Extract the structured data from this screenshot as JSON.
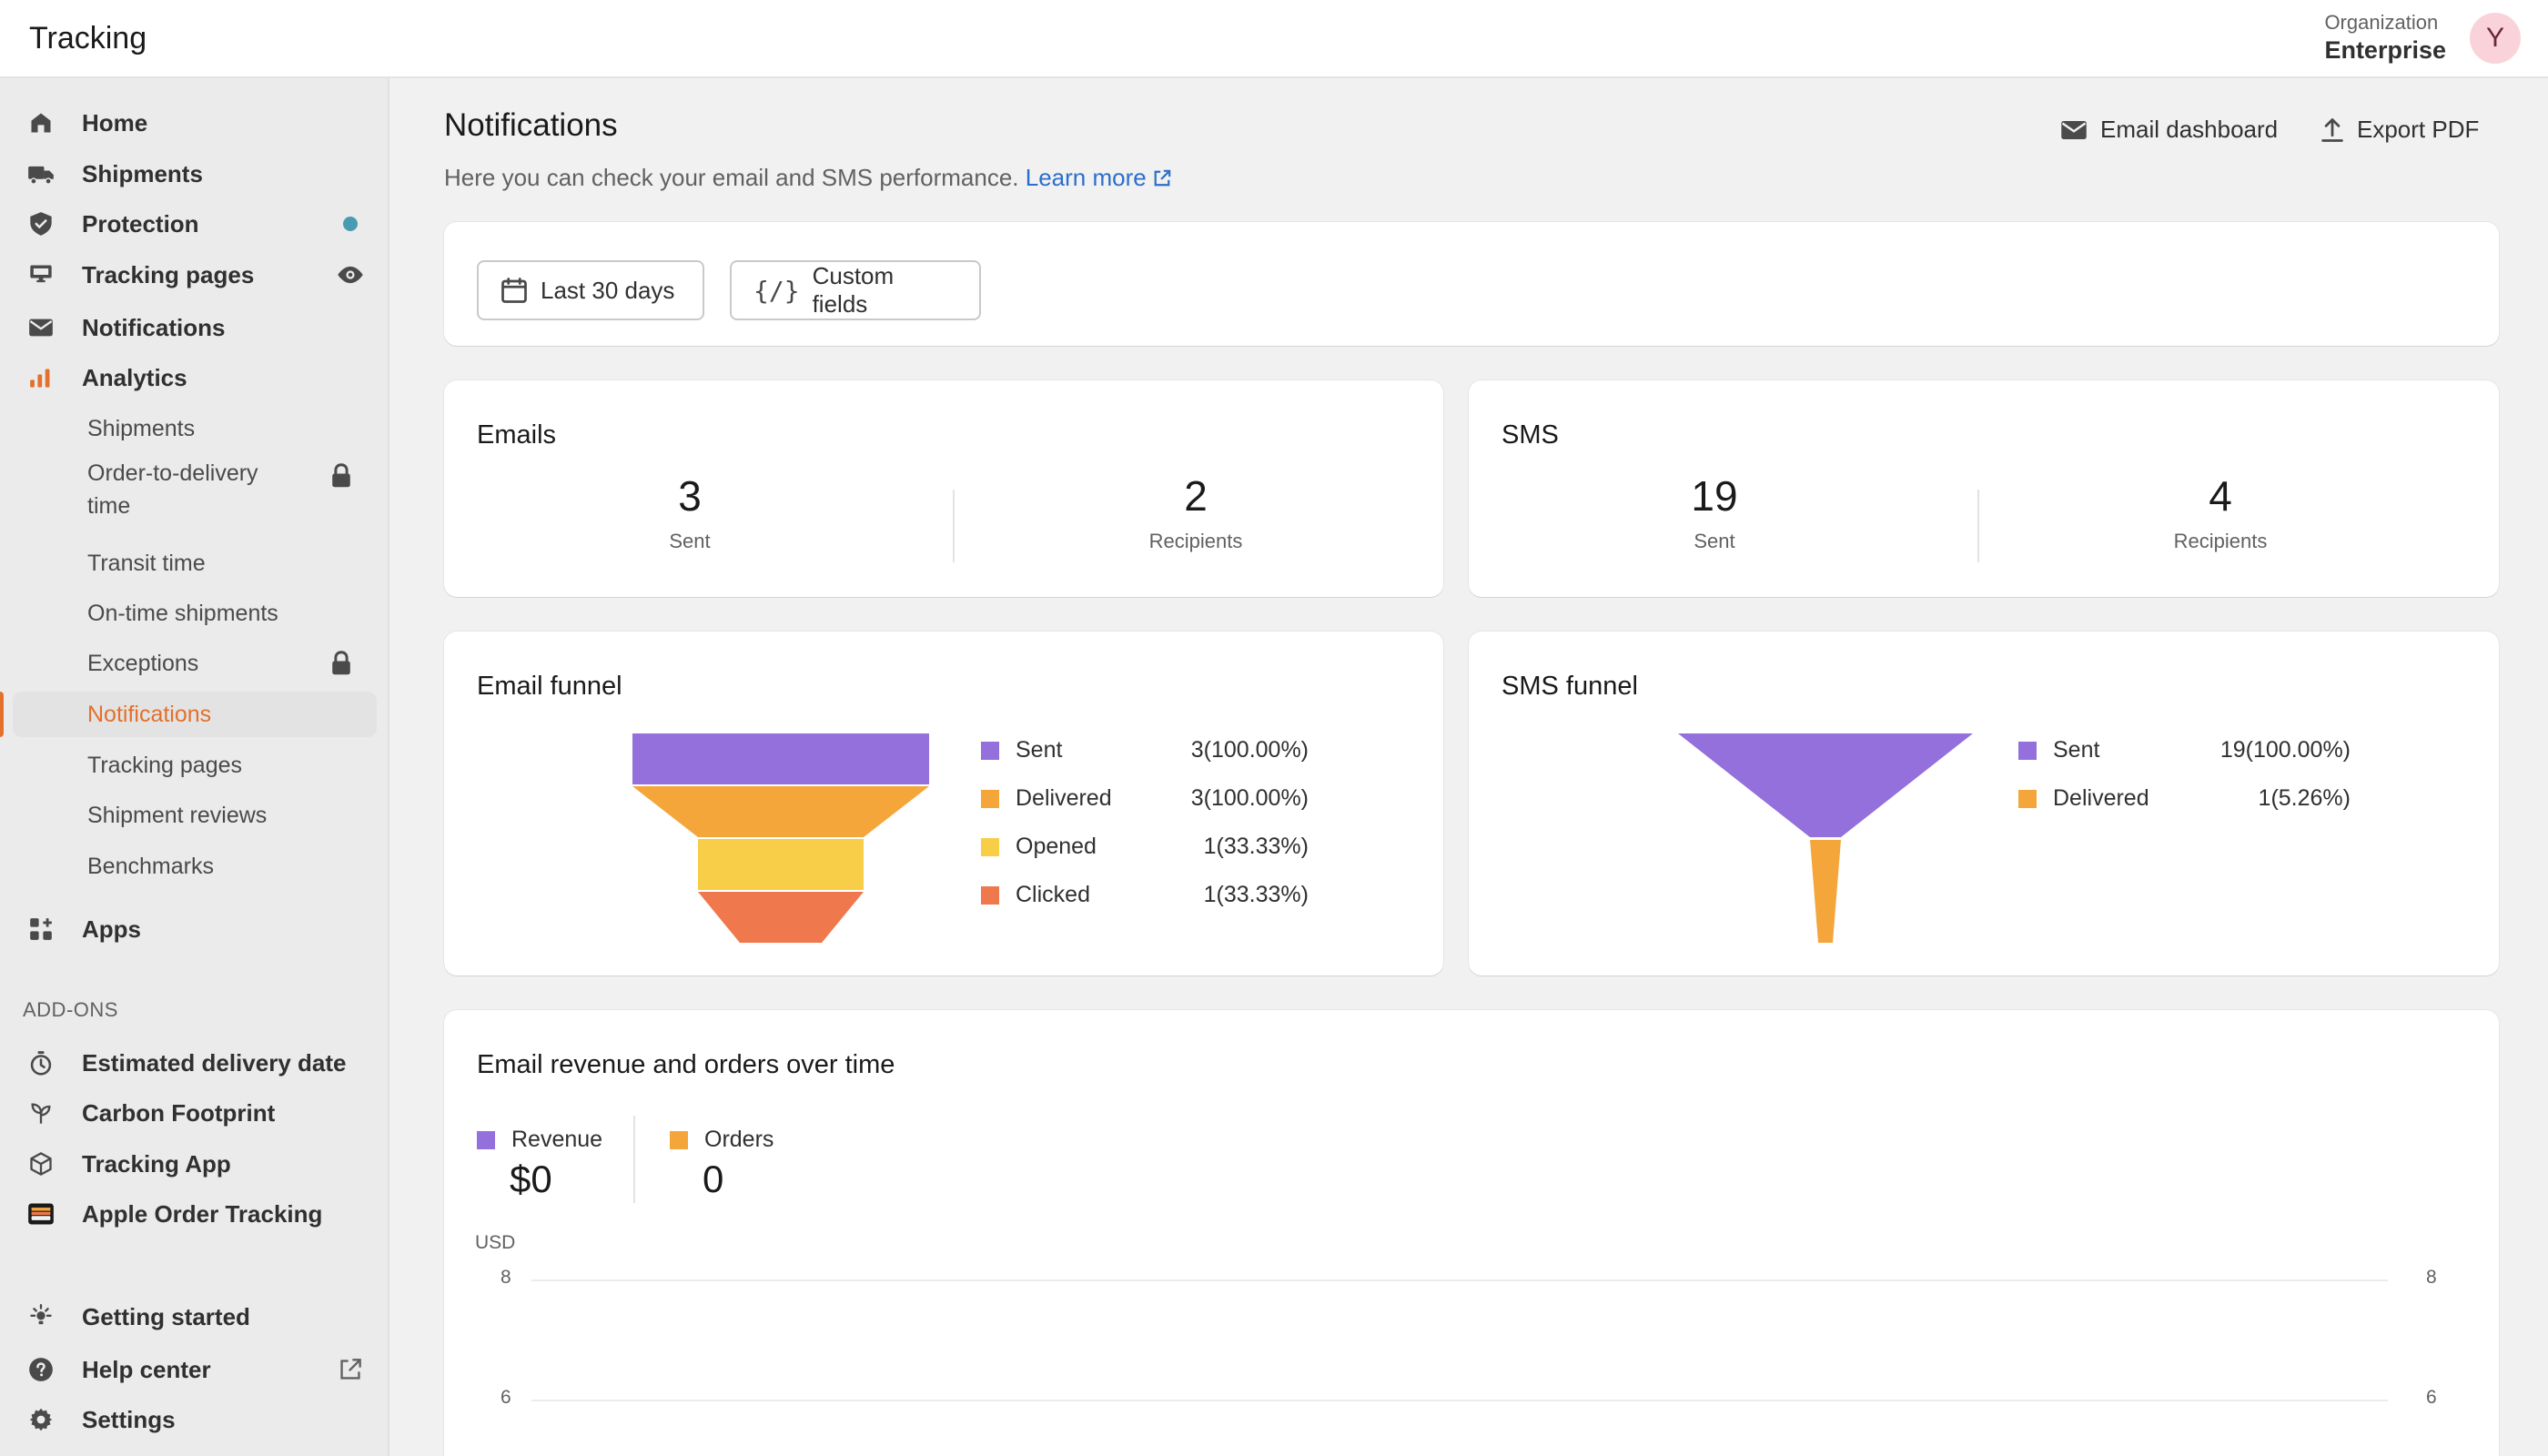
{
  "app": {
    "title": "Tracking"
  },
  "org": {
    "label": "Organization",
    "name": "Enterprise",
    "avatar_initial": "Y",
    "avatar_color": "#f9d3d9"
  },
  "sidebar": {
    "main_items": [
      {
        "label": "Home",
        "icon": "home-icon"
      },
      {
        "label": "Shipments",
        "icon": "truck-icon"
      },
      {
        "label": "Protection",
        "icon": "shield-icon"
      },
      {
        "label": "Tracking pages",
        "icon": "storefront-icon"
      },
      {
        "label": "Notifications",
        "icon": "mail-icon"
      },
      {
        "label": "Analytics",
        "icon": "bar-chart-icon"
      }
    ],
    "analytics_items": [
      {
        "label": "Shipments"
      },
      {
        "label": "Order-to-delivery time",
        "locked": true
      },
      {
        "label": "Transit time"
      },
      {
        "label": "On-time shipments"
      },
      {
        "label": "Exceptions",
        "locked": true
      },
      {
        "label": "Notifications",
        "active": true
      },
      {
        "label": "Tracking pages"
      },
      {
        "label": "Shipment reviews"
      },
      {
        "label": "Benchmarks"
      }
    ],
    "apps_label": "Apps",
    "addons_section": "ADD-ONS",
    "addons": [
      {
        "label": "Estimated delivery date",
        "icon": "stopwatch-icon"
      },
      {
        "label": "Carbon Footprint",
        "icon": "leaf-icon"
      },
      {
        "label": "Tracking App",
        "icon": "package-icon"
      },
      {
        "label": "Apple Order Tracking",
        "icon": "wallet-icon"
      }
    ],
    "footer": [
      {
        "label": "Getting started",
        "icon": "lightbulb-icon"
      },
      {
        "label": "Help center",
        "icon": "help-circle-icon"
      },
      {
        "label": "Settings",
        "icon": "gear-icon"
      }
    ]
  },
  "page": {
    "title": "Notifications",
    "subtitle": "Here you can check your email and SMS performance.",
    "learn_more": "Learn more",
    "actions": {
      "email_dashboard": "Email dashboard",
      "export_pdf": "Export PDF"
    },
    "filters": {
      "date_range": "Last 30 days",
      "custom_fields": "Custom fields"
    }
  },
  "emails": {
    "title": "Emails",
    "sent": "3",
    "sent_label": "Sent",
    "recipients": "2",
    "recipients_label": "Recipients"
  },
  "sms": {
    "title": "SMS",
    "sent": "19",
    "sent_label": "Sent",
    "recipients": "4",
    "recipients_label": "Recipients"
  },
  "email_funnel": {
    "title": "Email funnel",
    "stages": [
      {
        "label": "Sent",
        "display": "3(100.00%)",
        "color": "#9370db"
      },
      {
        "label": "Delivered",
        "display": "3(100.00%)",
        "color": "#f4a63a"
      },
      {
        "label": "Opened",
        "display": "1(33.33%)",
        "color": "#f8cd47"
      },
      {
        "label": "Clicked",
        "display": "1(33.33%)",
        "color": "#ef784c"
      }
    ]
  },
  "sms_funnel": {
    "title": "SMS funnel",
    "stages": [
      {
        "label": "Sent",
        "display": "19(100.00%)",
        "color": "#9370db"
      },
      {
        "label": "Delivered",
        "display": "1(5.26%)",
        "color": "#f4a63a"
      }
    ]
  },
  "revenue_chart": {
    "title": "Email revenue and orders over time",
    "revenue_label": "Revenue",
    "revenue_value": "$0",
    "revenue_color": "#9370db",
    "orders_label": "Orders",
    "orders_value": "0",
    "orders_color": "#f4a63a",
    "unit_label": "USD",
    "y_ticks_left": [
      "8",
      "6"
    ],
    "y_ticks_right": [
      "8",
      "6"
    ]
  },
  "chart_data": [
    {
      "type": "funnel",
      "title": "Email funnel",
      "categories": [
        "Sent",
        "Delivered",
        "Opened",
        "Clicked"
      ],
      "values": [
        3,
        3,
        1,
        1
      ],
      "percents": [
        100.0,
        100.0,
        33.33,
        33.33
      ]
    },
    {
      "type": "funnel",
      "title": "SMS funnel",
      "categories": [
        "Sent",
        "Delivered"
      ],
      "values": [
        19,
        1
      ],
      "percents": [
        100.0,
        5.26
      ]
    }
  ]
}
